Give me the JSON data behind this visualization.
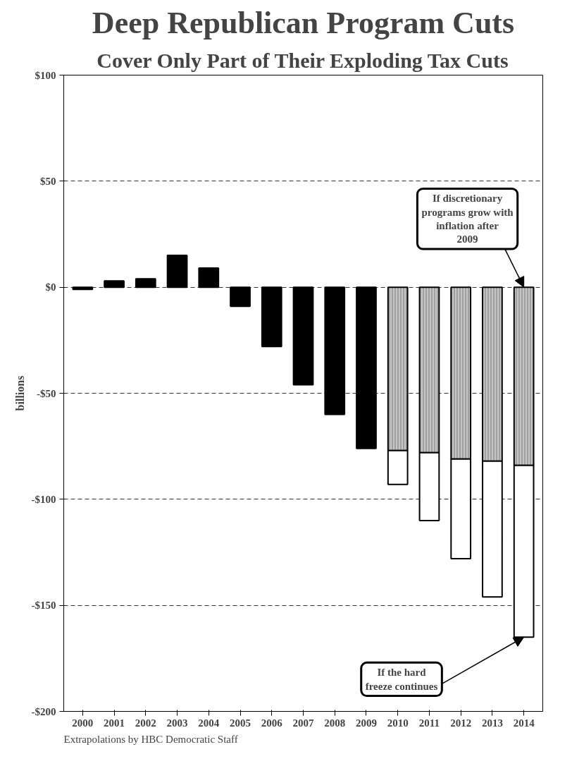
{
  "chart_data": {
    "type": "bar",
    "title": "Deep Republican Program Cuts",
    "subtitle": "Cover Only Part of Their Exploding Tax Cuts",
    "ylabel": "billions",
    "categories": [
      "2000",
      "2001",
      "2002",
      "2003",
      "2004",
      "2005",
      "2006",
      "2007",
      "2008",
      "2009",
      "2010",
      "2011",
      "2012",
      "2013",
      "2014"
    ],
    "stacked": true,
    "series": [
      {
        "color": "#000000",
        "values": [
          -1,
          3,
          4,
          15,
          9,
          -9,
          -28,
          -46,
          -60,
          -76,
          null,
          null,
          null,
          null,
          null
        ]
      },
      {
        "color": "#a0a0a0",
        "values": [
          null,
          null,
          null,
          null,
          null,
          null,
          null,
          null,
          null,
          null,
          -77,
          -78,
          -81,
          -82,
          -84
        ]
      },
      {
        "color": "#ffffff",
        "values": [
          null,
          null,
          null,
          null,
          null,
          null,
          null,
          null,
          null,
          null,
          -16,
          -32,
          -47,
          -64,
          -81
        ]
      }
    ],
    "ylim": [
      -200,
      100
    ],
    "yticks": [
      {
        "value": 100,
        "label": "$100"
      },
      {
        "value": 50,
        "label": "$50"
      },
      {
        "value": 0,
        "label": "$0"
      },
      {
        "value": -50,
        "label": "-$50"
      },
      {
        "value": -100,
        "label": "-$100"
      },
      {
        "value": -150,
        "label": "-$150"
      },
      {
        "value": -200,
        "label": "-$200"
      }
    ],
    "grid": "y",
    "annotations": [
      {
        "text": "If discretionary programs grow with inflation after 2009",
        "x": "2014",
        "y": 0
      },
      {
        "text": "If the hard freeze continues",
        "x": "2014",
        "y": -165
      },
      "Extrapolations by HBC Democratic Staff"
    ]
  }
}
